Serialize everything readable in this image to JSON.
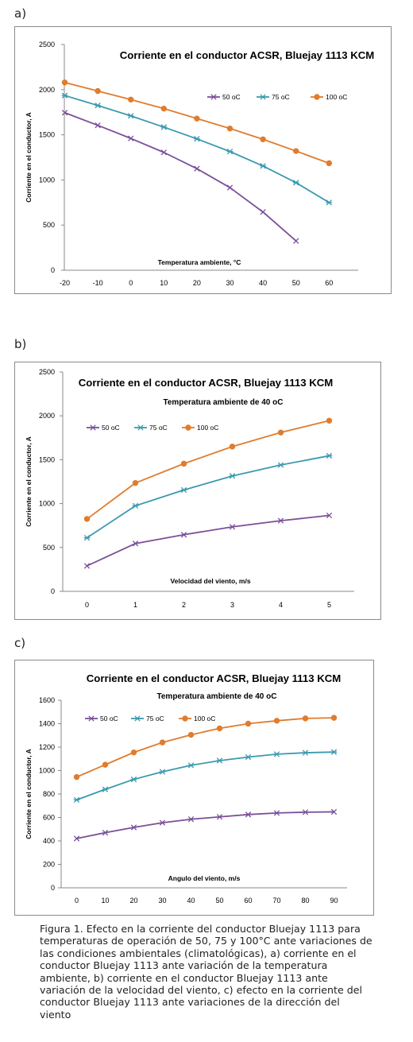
{
  "panels": [
    {
      "label": "a)"
    },
    {
      "label": "b)"
    },
    {
      "label": "c)"
    }
  ],
  "caption": "Figura 1. Efecto en la corriente del conductor Bluejay 1113 para temperaturas de operación de 50, 75 y 100°C ante variaciones de las condiciones ambientales (climatológicas), a) corriente en el conductor Bluejay 1113 ante variación de la temperatura ambiente, b) corriente en el conductor Bluejay 1113 ante variación de la velocidad del viento, c) efecto en la corriente del conductor Bluejay 1113 ante variaciones de la dirección del viento",
  "colors": {
    "s50": "#7a4f9a",
    "s75": "#3a9ab0",
    "s100": "#e07c2e"
  },
  "chart_data": [
    {
      "type": "line",
      "title": "Corriente en el conductor  ACSR, Bluejay 1113 KCM",
      "subtitle": "",
      "xlabel": "Temperatura ambiente, °C",
      "ylabel": "Corriente en el conductor, A",
      "ylim": [
        0,
        2500
      ],
      "yticks": [
        0,
        500,
        1000,
        1500,
        2000,
        2500
      ],
      "categories": [
        "-20",
        "-10",
        "0",
        "10",
        "20",
        "30",
        "40",
        "50",
        "60"
      ],
      "legend_position": "top-right",
      "grid": false,
      "series": [
        {
          "name": "50 oC",
          "marker": "x",
          "values": [
            1745,
            1605,
            1460,
            1305,
            1125,
            915,
            645,
            325,
            null
          ]
        },
        {
          "name": "75 oC",
          "marker": "star",
          "values": [
            1935,
            1825,
            1710,
            1585,
            1455,
            1315,
            1155,
            970,
            750
          ]
        },
        {
          "name": "100 oC",
          "marker": "circle",
          "values": [
            2080,
            1985,
            1890,
            1790,
            1680,
            1570,
            1450,
            1320,
            1185
          ]
        }
      ]
    },
    {
      "type": "line",
      "title": "Corriente en el conductor ACSR, Bluejay 1113 KCM",
      "subtitle": "Temperatura ambiente de 40 oC",
      "xlabel": "Velocidad del viento, m/s",
      "ylabel": "Corriente en el conductor, A",
      "ylim": [
        0,
        2500
      ],
      "yticks": [
        0,
        500,
        1000,
        1500,
        2000,
        2500
      ],
      "categories": [
        "0",
        "1",
        "2",
        "3",
        "4",
        "5"
      ],
      "legend_position": "top-left",
      "grid": false,
      "series": [
        {
          "name": "50 oC",
          "marker": "x",
          "values": [
            290,
            545,
            645,
            735,
            805,
            865
          ]
        },
        {
          "name": "75 oC",
          "marker": "star",
          "values": [
            610,
            975,
            1155,
            1315,
            1440,
            1545
          ]
        },
        {
          "name": "100 oC",
          "marker": "circle",
          "values": [
            825,
            1235,
            1455,
            1650,
            1810,
            1945
          ]
        }
      ]
    },
    {
      "type": "line",
      "title": "Corriente en el conductor ACSR, Bluejay 1113 KCM",
      "subtitle": "Temperatura ambiente de 40 oC",
      "xlabel": "Angulo del viento, m/s",
      "ylabel": "Corriente en el conductor, A",
      "ylim": [
        0,
        1600
      ],
      "yticks": [
        0,
        200,
        400,
        600,
        800,
        1000,
        1200,
        1400,
        1600
      ],
      "categories": [
        "0",
        "10",
        "20",
        "30",
        "40",
        "50",
        "60",
        "70",
        "80",
        "90"
      ],
      "legend_position": "top-left",
      "grid": false,
      "series": [
        {
          "name": "50 oC",
          "marker": "x",
          "values": [
            420,
            470,
            515,
            555,
            585,
            605,
            625,
            638,
            645,
            648
          ]
        },
        {
          "name": "75 oC",
          "marker": "star",
          "values": [
            750,
            840,
            925,
            990,
            1045,
            1085,
            1115,
            1140,
            1152,
            1158
          ]
        },
        {
          "name": "100 oC",
          "marker": "circle",
          "values": [
            945,
            1050,
            1155,
            1240,
            1305,
            1360,
            1400,
            1425,
            1445,
            1450
          ]
        }
      ]
    }
  ]
}
